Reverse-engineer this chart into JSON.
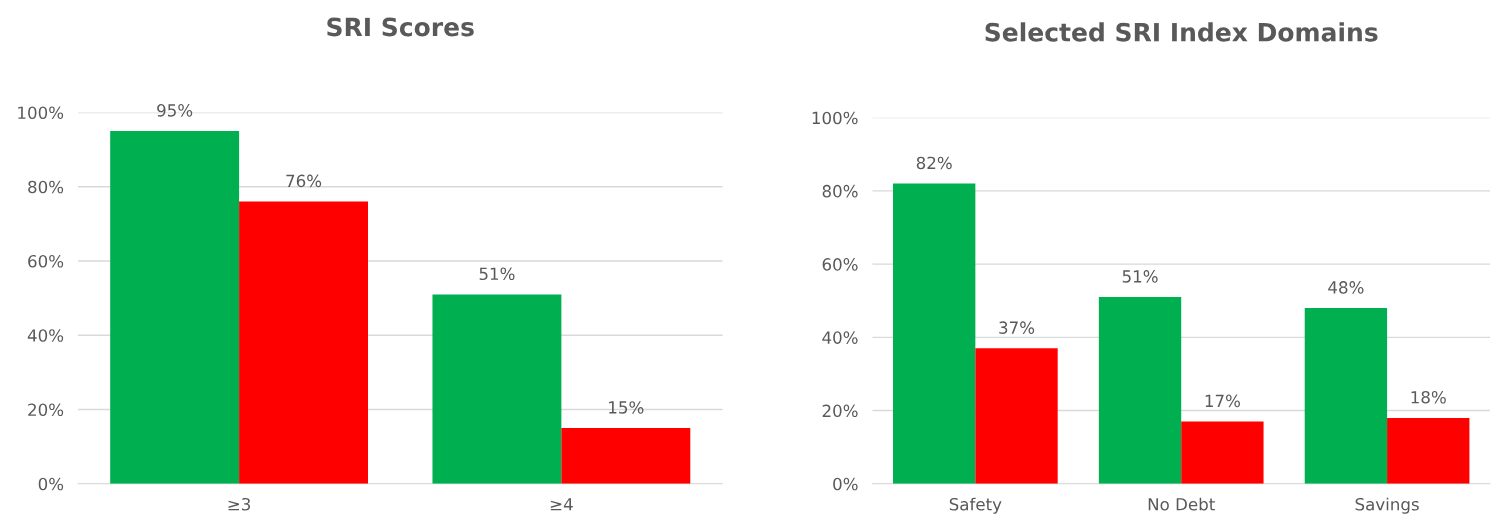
{
  "chart_data": [
    {
      "type": "bar",
      "title": "SRI Scores",
      "categories": [
        "≥3",
        "≥4"
      ],
      "series": [
        {
          "color": "#00b050",
          "values": [
            95,
            51
          ],
          "value_labels": [
            "95%",
            "51%"
          ]
        },
        {
          "color": "#ff0000",
          "values": [
            76,
            15
          ],
          "value_labels": [
            "76%",
            "15%"
          ]
        }
      ],
      "ylim": [
        0,
        100
      ],
      "yticks": [
        {
          "value": 0,
          "label": "0%"
        },
        {
          "value": 20,
          "label": "20%"
        },
        {
          "value": 40,
          "label": "40%"
        },
        {
          "value": 60,
          "label": "60%"
        },
        {
          "value": 80,
          "label": "80%"
        },
        {
          "value": 100,
          "label": "100%"
        }
      ],
      "grid": "y",
      "legend": false
    },
    {
      "type": "bar",
      "title": "Selected SRI Index Domains",
      "categories": [
        "Safety",
        "No Debt",
        "Savings"
      ],
      "series": [
        {
          "color": "#00b050",
          "values": [
            82,
            51,
            48
          ],
          "value_labels": [
            "82%",
            "51%",
            "48%"
          ]
        },
        {
          "color": "#ff0000",
          "values": [
            37,
            17,
            18
          ],
          "value_labels": [
            "37%",
            "17%",
            "18%"
          ]
        }
      ],
      "ylim": [
        0,
        100
      ],
      "yticks": [
        {
          "value": 0,
          "label": "0%"
        },
        {
          "value": 20,
          "label": "20%"
        },
        {
          "value": 40,
          "label": "40%"
        },
        {
          "value": 60,
          "label": "60%"
        },
        {
          "value": 80,
          "label": "80%"
        },
        {
          "value": 100,
          "label": "100%"
        }
      ],
      "grid": "y",
      "legend": false
    }
  ]
}
